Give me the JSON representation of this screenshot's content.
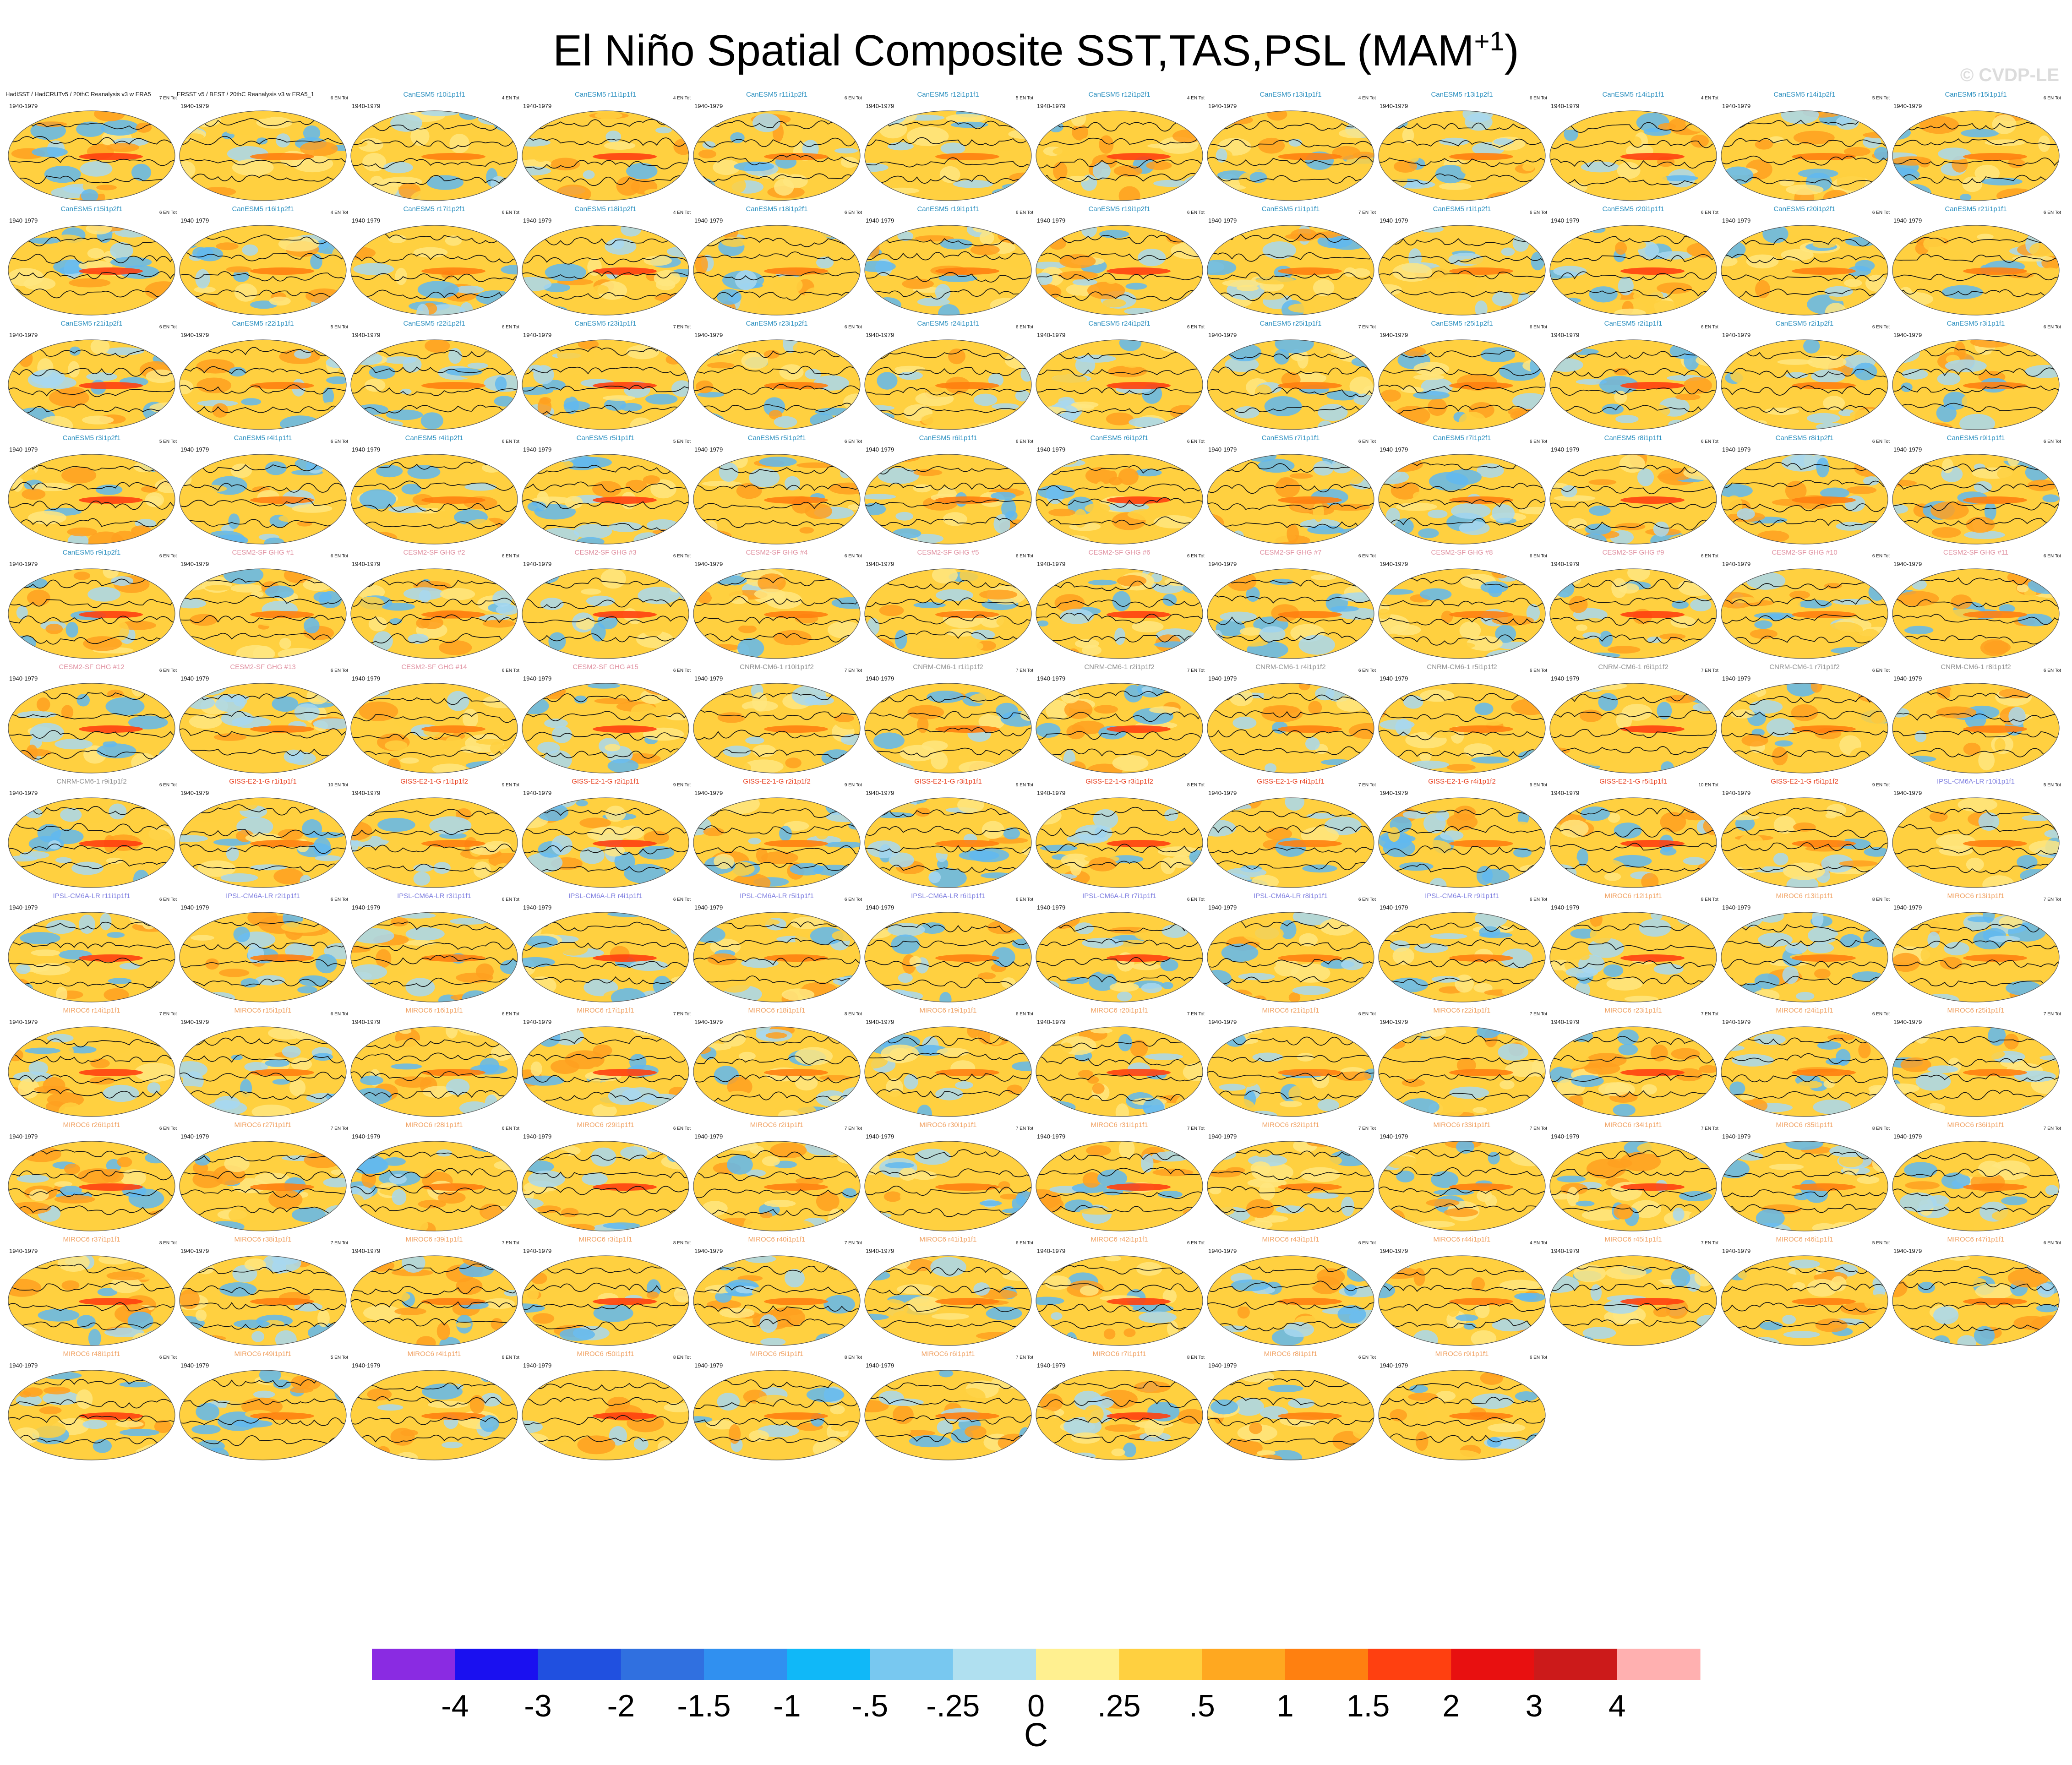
{
  "title_main": "El Niño Spatial Composite SST,TAS,PSL (MAM",
  "title_sup": "+1",
  "title_end": ")",
  "watermark": "© CVDP-LE",
  "colors": {
    "title_model_colors": {
      "CanESM5": "#2a8fbf",
      "CESM2-SF GHG": "#e090a0",
      "CNRM-CM6-1": "#909090",
      "GISS-E2-1-G": "#e84020",
      "IPSL-CM6A-LR": "#8080e0",
      "MIROC6": "#f0a060"
    },
    "land_palette": [
      "#ffd040",
      "#ffa020",
      "#a8d8f0",
      "#ffe680",
      "#60b8f0"
    ]
  },
  "chart_data": {
    "type": "heatmap",
    "title": "El Niño Spatial Composite SST,TAS,PSL (MAM+1)",
    "colorbar": {
      "unit": "C",
      "tick_labels": [
        "-4",
        "-3",
        "-2",
        "-1.5",
        "-1",
        "-.5",
        "-.25",
        "0",
        ".25",
        ".5",
        "1",
        "1.5",
        "2",
        "3",
        "4"
      ],
      "colors": [
        "#8a2be2",
        "#1a10f0",
        "#2050e0",
        "#3070e0",
        "#3090f0",
        "#10b8f8",
        "#78c8f0",
        "#b0e0f0",
        "#fff090",
        "#ffd040",
        "#ffa820",
        "#ff8010",
        "#ff4010",
        "#e81010",
        "#cc1a1a",
        "#ffb0b0"
      ]
    },
    "period": "1940-1979",
    "panels": [
      {
        "title": "HadISST / HadCRUTv5 / 20thC Reanalysis v3 w ERA5",
        "model": "obs",
        "stat": "7 EN Tot"
      },
      {
        "title": "ERSST v5 / BEST / 20thC Reanalysis v3 w ERA5_1",
        "model": "obs",
        "stat": "6 EN Tot"
      },
      {
        "title": "CanESM5 r10i1p1f1",
        "model": "CanESM5",
        "stat": "4 EN Tot"
      },
      {
        "title": "CanESM5 r11i1p1f1",
        "model": "CanESM5",
        "stat": "4 EN Tot"
      },
      {
        "title": "CanESM5 r11i1p2f1",
        "model": "CanESM5",
        "stat": "6 EN Tot"
      },
      {
        "title": "CanESM5 r12i1p1f1",
        "model": "CanESM5",
        "stat": "5 EN Tot"
      },
      {
        "title": "CanESM5 r12i1p2f1",
        "model": "CanESM5",
        "stat": "4 EN Tot"
      },
      {
        "title": "CanESM5 r13i1p1f1",
        "model": "CanESM5",
        "stat": "4 EN Tot"
      },
      {
        "title": "CanESM5 r13i1p2f1",
        "model": "CanESM5",
        "stat": "6 EN Tot"
      },
      {
        "title": "CanESM5 r14i1p1f1",
        "model": "CanESM5",
        "stat": "4 EN Tot"
      },
      {
        "title": "CanESM5 r14i1p2f1",
        "model": "CanESM5",
        "stat": "5 EN Tot"
      },
      {
        "title": "CanESM5 r15i1p1f1",
        "model": "CanESM5",
        "stat": "6 EN Tot"
      },
      {
        "title": "CanESM5 r15i1p2f1",
        "model": "CanESM5",
        "stat": "6 EN Tot"
      },
      {
        "title": "CanESM5 r16i1p2f1",
        "model": "CanESM5",
        "stat": "4 EN Tot"
      },
      {
        "title": "CanESM5 r17i1p2f1",
        "model": "CanESM5",
        "stat": "6 EN Tot"
      },
      {
        "title": "CanESM5 r18i1p2f1",
        "model": "CanESM5",
        "stat": "4 EN Tot"
      },
      {
        "title": "CanESM5 r18i1p2f1",
        "model": "CanESM5",
        "stat": "6 EN Tot"
      },
      {
        "title": "CanESM5 r19i1p1f1",
        "model": "CanESM5",
        "stat": "6 EN Tot"
      },
      {
        "title": "CanESM5 r19i1p2f1",
        "model": "CanESM5",
        "stat": "6 EN Tot"
      },
      {
        "title": "CanESM5 r1i1p1f1",
        "model": "CanESM5",
        "stat": "7 EN Tot"
      },
      {
        "title": "CanESM5 r1i1p2f1",
        "model": "CanESM5",
        "stat": "6 EN Tot"
      },
      {
        "title": "CanESM5 r20i1p1f1",
        "model": "CanESM5",
        "stat": "6 EN Tot"
      },
      {
        "title": "CanESM5 r20i1p2f1",
        "model": "CanESM5",
        "stat": "6 EN Tot"
      },
      {
        "title": "CanESM5 r21i1p1f1",
        "model": "CanESM5",
        "stat": "6 EN Tot"
      },
      {
        "title": "CanESM5 r21i1p2f1",
        "model": "CanESM5",
        "stat": "6 EN Tot"
      },
      {
        "title": "CanESM5 r22i1p1f1",
        "model": "CanESM5",
        "stat": "5 EN Tot"
      },
      {
        "title": "CanESM5 r22i1p2f1",
        "model": "CanESM5",
        "stat": "6 EN Tot"
      },
      {
        "title": "CanESM5 r23i1p1f1",
        "model": "CanESM5",
        "stat": "7 EN Tot"
      },
      {
        "title": "CanESM5 r23i1p2f1",
        "model": "CanESM5",
        "stat": "6 EN Tot"
      },
      {
        "title": "CanESM5 r24i1p1f1",
        "model": "CanESM5",
        "stat": "6 EN Tot"
      },
      {
        "title": "CanESM5 r24i1p2f1",
        "model": "CanESM5",
        "stat": "6 EN Tot"
      },
      {
        "title": "CanESM5 r25i1p1f1",
        "model": "CanESM5",
        "stat": "7 EN Tot"
      },
      {
        "title": "CanESM5 r25i1p2f1",
        "model": "CanESM5",
        "stat": "6 EN Tot"
      },
      {
        "title": "CanESM5 r2i1p1f1",
        "model": "CanESM5",
        "stat": "6 EN Tot"
      },
      {
        "title": "CanESM5 r2i1p2f1",
        "model": "CanESM5",
        "stat": "6 EN Tot"
      },
      {
        "title": "CanESM5 r3i1p1f1",
        "model": "CanESM5",
        "stat": "6 EN Tot"
      },
      {
        "title": "CanESM5 r3i1p2f1",
        "model": "CanESM5",
        "stat": "5 EN Tot"
      },
      {
        "title": "CanESM5 r4i1p1f1",
        "model": "CanESM5",
        "stat": "6 EN Tot"
      },
      {
        "title": "CanESM5 r4i1p2f1",
        "model": "CanESM5",
        "stat": "6 EN Tot"
      },
      {
        "title": "CanESM5 r5i1p1f1",
        "model": "CanESM5",
        "stat": "5 EN Tot"
      },
      {
        "title": "CanESM5 r5i1p2f1",
        "model": "CanESM5",
        "stat": "6 EN Tot"
      },
      {
        "title": "CanESM5 r6i1p1f1",
        "model": "CanESM5",
        "stat": "6 EN Tot"
      },
      {
        "title": "CanESM5 r6i1p2f1",
        "model": "CanESM5",
        "stat": "6 EN Tot"
      },
      {
        "title": "CanESM5 r7i1p1f1",
        "model": "CanESM5",
        "stat": "6 EN Tot"
      },
      {
        "title": "CanESM5 r7i1p2f1",
        "model": "CanESM5",
        "stat": "6 EN Tot"
      },
      {
        "title": "CanESM5 r8i1p1f1",
        "model": "CanESM5",
        "stat": "6 EN Tot"
      },
      {
        "title": "CanESM5 r8i1p2f1",
        "model": "CanESM5",
        "stat": "6 EN Tot"
      },
      {
        "title": "CanESM5 r9i1p1f1",
        "model": "CanESM5",
        "stat": "6 EN Tot"
      },
      {
        "title": "CanESM5 r9i1p2f1",
        "model": "CanESM5",
        "stat": "6 EN Tot"
      },
      {
        "title": "CESM2-SF GHG #1",
        "model": "CESM2-SF GHG",
        "stat": "6 EN Tot"
      },
      {
        "title": "CESM2-SF GHG #2",
        "model": "CESM2-SF GHG",
        "stat": "6 EN Tot"
      },
      {
        "title": "CESM2-SF GHG #3",
        "model": "CESM2-SF GHG",
        "stat": "6 EN Tot"
      },
      {
        "title": "CESM2-SF GHG #4",
        "model": "CESM2-SF GHG",
        "stat": "6 EN Tot"
      },
      {
        "title": "CESM2-SF GHG #5",
        "model": "CESM2-SF GHG",
        "stat": "6 EN Tot"
      },
      {
        "title": "CESM2-SF GHG #6",
        "model": "CESM2-SF GHG",
        "stat": "6 EN Tot"
      },
      {
        "title": "CESM2-SF GHG #7",
        "model": "CESM2-SF GHG",
        "stat": "6 EN Tot"
      },
      {
        "title": "CESM2-SF GHG #8",
        "model": "CESM2-SF GHG",
        "stat": "6 EN Tot"
      },
      {
        "title": "CESM2-SF GHG #9",
        "model": "CESM2-SF GHG",
        "stat": "6 EN Tot"
      },
      {
        "title": "CESM2-SF GHG #10",
        "model": "CESM2-SF GHG",
        "stat": "6 EN Tot"
      },
      {
        "title": "CESM2-SF GHG #11",
        "model": "CESM2-SF GHG",
        "stat": "6 EN Tot"
      },
      {
        "title": "CESM2-SF GHG #12",
        "model": "CESM2-SF GHG",
        "stat": "6 EN Tot"
      },
      {
        "title": "CESM2-SF GHG #13",
        "model": "CESM2-SF GHG",
        "stat": "6 EN Tot"
      },
      {
        "title": "CESM2-SF GHG #14",
        "model": "CESM2-SF GHG",
        "stat": "6 EN Tot"
      },
      {
        "title": "CESM2-SF GHG #15",
        "model": "CESM2-SF GHG",
        "stat": "6 EN Tot"
      },
      {
        "title": "CNRM-CM6-1 r10i1p1f2",
        "model": "CNRM-CM6-1",
        "stat": "7 EN Tot"
      },
      {
        "title": "CNRM-CM6-1 r1i1p1f2",
        "model": "CNRM-CM6-1",
        "stat": "7 EN Tot"
      },
      {
        "title": "CNRM-CM6-1 r2i1p1f2",
        "model": "CNRM-CM6-1",
        "stat": "7 EN Tot"
      },
      {
        "title": "CNRM-CM6-1 r4i1p1f2",
        "model": "CNRM-CM6-1",
        "stat": "6 EN Tot"
      },
      {
        "title": "CNRM-CM6-1 r5i1p1f2",
        "model": "CNRM-CM6-1",
        "stat": "6 EN Tot"
      },
      {
        "title": "CNRM-CM6-1 r6i1p1f2",
        "model": "CNRM-CM6-1",
        "stat": "7 EN Tot"
      },
      {
        "title": "CNRM-CM6-1 r7i1p1f2",
        "model": "CNRM-CM6-1",
        "stat": "6 EN Tot"
      },
      {
        "title": "CNRM-CM6-1 r8i1p1f2",
        "model": "CNRM-CM6-1",
        "stat": "6 EN Tot"
      },
      {
        "title": "CNRM-CM6-1 r9i1p1f2",
        "model": "CNRM-CM6-1",
        "stat": "6 EN Tot"
      },
      {
        "title": "GISS-E2-1-G r1i1p1f1",
        "model": "GISS-E2-1-G",
        "stat": "10 EN Tot"
      },
      {
        "title": "GISS-E2-1-G r1i1p1f2",
        "model": "GISS-E2-1-G",
        "stat": "9 EN Tot"
      },
      {
        "title": "GISS-E2-1-G r2i1p1f1",
        "model": "GISS-E2-1-G",
        "stat": "9 EN Tot"
      },
      {
        "title": "GISS-E2-1-G r2i1p1f2",
        "model": "GISS-E2-1-G",
        "stat": "9 EN Tot"
      },
      {
        "title": "GISS-E2-1-G r3i1p1f1",
        "model": "GISS-E2-1-G",
        "stat": "9 EN Tot"
      },
      {
        "title": "GISS-E2-1-G r3i1p1f2",
        "model": "GISS-E2-1-G",
        "stat": "8 EN Tot"
      },
      {
        "title": "GISS-E2-1-G r4i1p1f1",
        "model": "GISS-E2-1-G",
        "stat": "7 EN Tot"
      },
      {
        "title": "GISS-E2-1-G r4i1p1f2",
        "model": "GISS-E2-1-G",
        "stat": "9 EN Tot"
      },
      {
        "title": "GISS-E2-1-G r5i1p1f1",
        "model": "GISS-E2-1-G",
        "stat": "10 EN Tot"
      },
      {
        "title": "GISS-E2-1-G r5i1p1f2",
        "model": "GISS-E2-1-G",
        "stat": "9 EN Tot"
      },
      {
        "title": "IPSL-CM6A-LR r10i1p1f1",
        "model": "IPSL-CM6A-LR",
        "stat": "5 EN Tot"
      },
      {
        "title": "IPSL-CM6A-LR r11i1p1f1",
        "model": "IPSL-CM6A-LR",
        "stat": "6 EN Tot"
      },
      {
        "title": "IPSL-CM6A-LR r2i1p1f1",
        "model": "IPSL-CM6A-LR",
        "stat": "6 EN Tot"
      },
      {
        "title": "IPSL-CM6A-LR r3i1p1f1",
        "model": "IPSL-CM6A-LR",
        "stat": "6 EN Tot"
      },
      {
        "title": "IPSL-CM6A-LR r4i1p1f1",
        "model": "IPSL-CM6A-LR",
        "stat": "6 EN Tot"
      },
      {
        "title": "IPSL-CM6A-LR r5i1p1f1",
        "model": "IPSL-CM6A-LR",
        "stat": "6 EN Tot"
      },
      {
        "title": "IPSL-CM6A-LR r6i1p1f1",
        "model": "IPSL-CM6A-LR",
        "stat": "6 EN Tot"
      },
      {
        "title": "IPSL-CM6A-LR r7i1p1f1",
        "model": "IPSL-CM6A-LR",
        "stat": "6 EN Tot"
      },
      {
        "title": "IPSL-CM6A-LR r8i1p1f1",
        "model": "IPSL-CM6A-LR",
        "stat": "6 EN Tot"
      },
      {
        "title": "IPSL-CM6A-LR r9i1p1f1",
        "model": "IPSL-CM6A-LR",
        "stat": "6 EN Tot"
      },
      {
        "title": "MIROC6 r12i1p1f1",
        "model": "MIROC6",
        "stat": "8 EN Tot"
      },
      {
        "title": "MIROC6 r13i1p1f1",
        "model": "MIROC6",
        "stat": "8 EN Tot"
      },
      {
        "title": "MIROC6 r13i1p1f1",
        "model": "MIROC6",
        "stat": "7 EN Tot"
      },
      {
        "title": "MIROC6 r14i1p1f1",
        "model": "MIROC6",
        "stat": "7 EN Tot"
      },
      {
        "title": "MIROC6 r15i1p1f1",
        "model": "MIROC6",
        "stat": "6 EN Tot"
      },
      {
        "title": "MIROC6 r16i1p1f1",
        "model": "MIROC6",
        "stat": "6 EN Tot"
      },
      {
        "title": "MIROC6 r17i1p1f1",
        "model": "MIROC6",
        "stat": "7 EN Tot"
      },
      {
        "title": "MIROC6 r18i1p1f1",
        "model": "MIROC6",
        "stat": "8 EN Tot"
      },
      {
        "title": "MIROC6 r19i1p1f1",
        "model": "MIROC6",
        "stat": "6 EN Tot"
      },
      {
        "title": "MIROC6 r20i1p1f1",
        "model": "MIROC6",
        "stat": "7 EN Tot"
      },
      {
        "title": "MIROC6 r21i1p1f1",
        "model": "MIROC6",
        "stat": "6 EN Tot"
      },
      {
        "title": "MIROC6 r22i1p1f1",
        "model": "MIROC6",
        "stat": "7 EN Tot"
      },
      {
        "title": "MIROC6 r23i1p1f1",
        "model": "MIROC6",
        "stat": "7 EN Tot"
      },
      {
        "title": "MIROC6 r24i1p1f1",
        "model": "MIROC6",
        "stat": "6 EN Tot"
      },
      {
        "title": "MIROC6 r25i1p1f1",
        "model": "MIROC6",
        "stat": "7 EN Tot"
      },
      {
        "title": "MIROC6 r26i1p1f1",
        "model": "MIROC6",
        "stat": "6 EN Tot"
      },
      {
        "title": "MIROC6 r27i1p1f1",
        "model": "MIROC6",
        "stat": "7 EN Tot"
      },
      {
        "title": "MIROC6 r28i1p1f1",
        "model": "MIROC6",
        "stat": "6 EN Tot"
      },
      {
        "title": "MIROC6 r29i1p1f1",
        "model": "MIROC6",
        "stat": "6 EN Tot"
      },
      {
        "title": "MIROC6 r2i1p1f1",
        "model": "MIROC6",
        "stat": "7 EN Tot"
      },
      {
        "title": "MIROC6 r30i1p1f1",
        "model": "MIROC6",
        "stat": "7 EN Tot"
      },
      {
        "title": "MIROC6 r31i1p1f1",
        "model": "MIROC6",
        "stat": "7 EN Tot"
      },
      {
        "title": "MIROC6 r32i1p1f1",
        "model": "MIROC6",
        "stat": "7 EN Tot"
      },
      {
        "title": "MIROC6 r33i1p1f1",
        "model": "MIROC6",
        "stat": "7 EN Tot"
      },
      {
        "title": "MIROC6 r34i1p1f1",
        "model": "MIROC6",
        "stat": "7 EN Tot"
      },
      {
        "title": "MIROC6 r35i1p1f1",
        "model": "MIROC6",
        "stat": "8 EN Tot"
      },
      {
        "title": "MIROC6 r36i1p1f1",
        "model": "MIROC6",
        "stat": "7 EN Tot"
      },
      {
        "title": "MIROC6 r37i1p1f1",
        "model": "MIROC6",
        "stat": "8 EN Tot"
      },
      {
        "title": "MIROC6 r38i1p1f1",
        "model": "MIROC6",
        "stat": "7 EN Tot"
      },
      {
        "title": "MIROC6 r39i1p1f1",
        "model": "MIROC6",
        "stat": "7 EN Tot"
      },
      {
        "title": "MIROC6 r3i1p1f1",
        "model": "MIROC6",
        "stat": "8 EN Tot"
      },
      {
        "title": "MIROC6 r40i1p1f1",
        "model": "MIROC6",
        "stat": "7 EN Tot"
      },
      {
        "title": "MIROC6 r41i1p1f1",
        "model": "MIROC6",
        "stat": "6 EN Tot"
      },
      {
        "title": "MIROC6 r42i1p1f1",
        "model": "MIROC6",
        "stat": "6 EN Tot"
      },
      {
        "title": "MIROC6 r43i1p1f1",
        "model": "MIROC6",
        "stat": "6 EN Tot"
      },
      {
        "title": "MIROC6 r44i1p1f1",
        "model": "MIROC6",
        "stat": "4 EN Tot"
      },
      {
        "title": "MIROC6 r45i1p1f1",
        "model": "MIROC6",
        "stat": "7 EN Tot"
      },
      {
        "title": "MIROC6 r46i1p1f1",
        "model": "MIROC6",
        "stat": "5 EN Tot"
      },
      {
        "title": "MIROC6 r47i1p1f1",
        "model": "MIROC6",
        "stat": "6 EN Tot"
      },
      {
        "title": "MIROC6 r48i1p1f1",
        "model": "MIROC6",
        "stat": "6 EN Tot"
      },
      {
        "title": "MIROC6 r49i1p1f1",
        "model": "MIROC6",
        "stat": "5 EN Tot"
      },
      {
        "title": "MIROC6 r4i1p1f1",
        "model": "MIROC6",
        "stat": "8 EN Tot"
      },
      {
        "title": "MIROC6 r50i1p1f1",
        "model": "MIROC6",
        "stat": "8 EN Tot"
      },
      {
        "title": "MIROC6 r5i1p1f1",
        "model": "MIROC6",
        "stat": "8 EN Tot"
      },
      {
        "title": "MIROC6 r6i1p1f1",
        "model": "MIROC6",
        "stat": "7 EN Tot"
      },
      {
        "title": "MIROC6 r7i1p1f1",
        "model": "MIROC6",
        "stat": "8 EN Tot"
      },
      {
        "title": "MIROC6 r8i1p1f1",
        "model": "MIROC6",
        "stat": "6 EN Tot"
      },
      {
        "title": "MIROC6 r9i1p1f1",
        "model": "MIROC6",
        "stat": "6 EN Tot"
      }
    ]
  }
}
